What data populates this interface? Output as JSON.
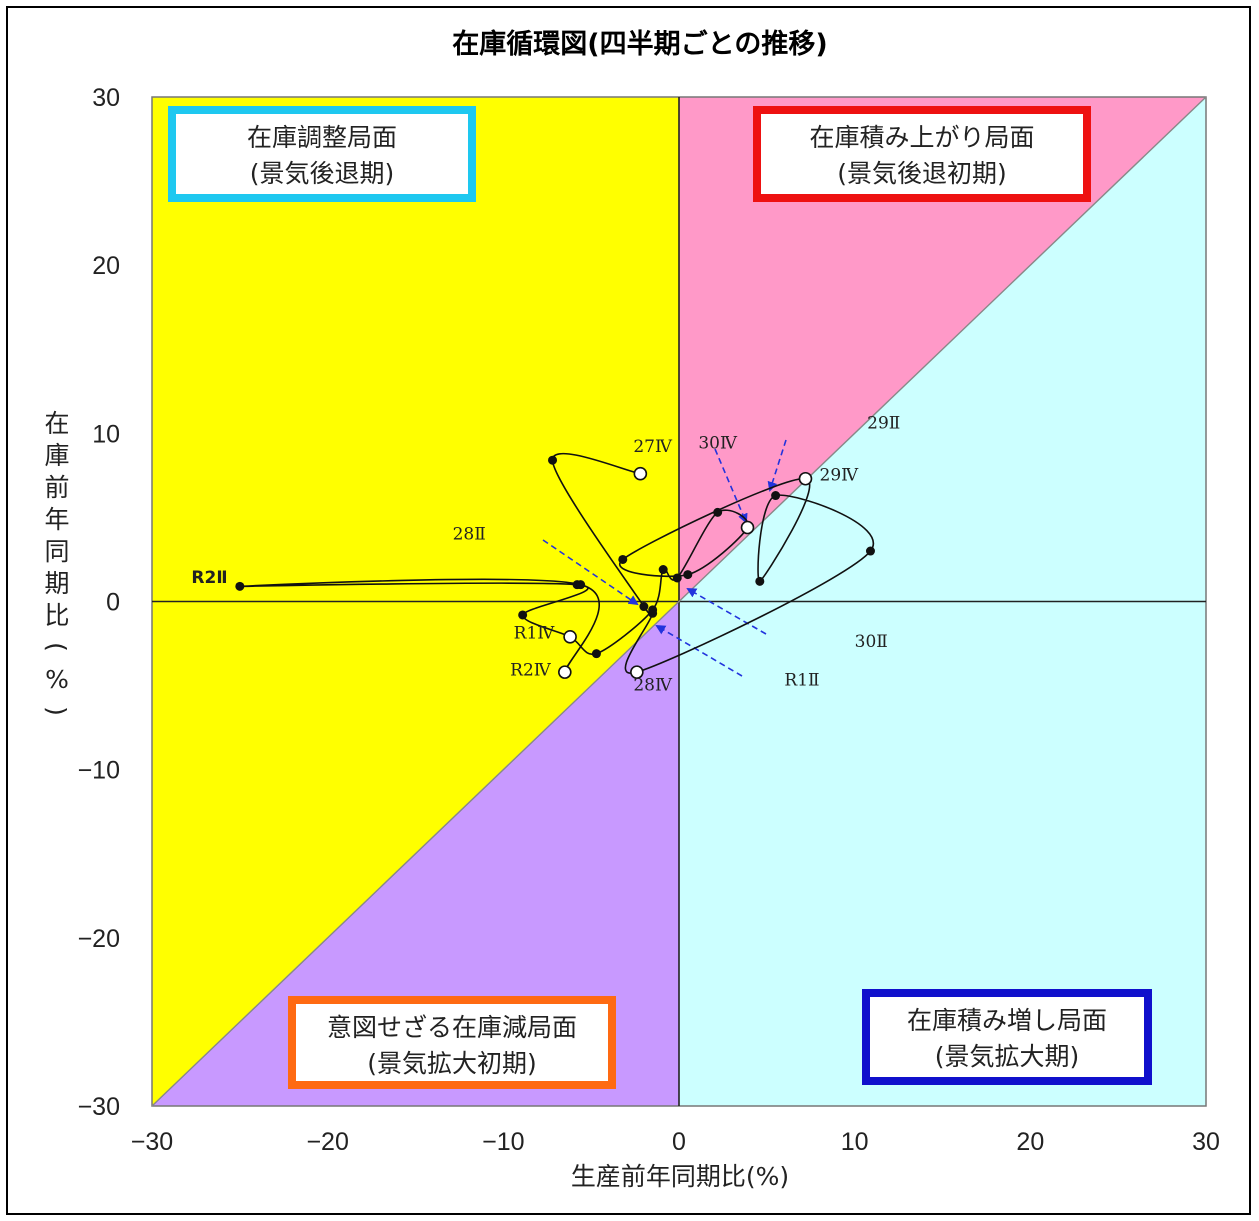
{
  "chart_data": {
    "type": "scatter",
    "title": "在庫循環図(四半期ごとの推移)",
    "xlabel": "生産前年同期比(%)",
    "ylabel": "在庫前年同期比(%)",
    "xlim": [
      -30,
      30
    ],
    "ylim": [
      -30,
      30
    ],
    "x_ticks": [
      "−30",
      "−20",
      "−10",
      "0",
      "10",
      "20",
      "30"
    ],
    "y_ticks": [
      "30",
      "20",
      "10",
      "0",
      "−10",
      "−20",
      "−30"
    ],
    "reference_lines": [
      "x = 0",
      "y = 0",
      "y = x"
    ],
    "phases": [
      {
        "name": "在庫調整局面",
        "sub": "(景気後退期)",
        "fill": "#ffff00",
        "border": "#1ec8f0"
      },
      {
        "name": "在庫積み上がり局面",
        "sub": "(景気後退初期)",
        "fill": "#ff99c8",
        "border": "#ee1111"
      },
      {
        "name": "意図せざる在庫減局面",
        "sub": "(景気拡大初期)",
        "fill": "#c899ff",
        "border": "#ff6a12"
      },
      {
        "name": "在庫積み増し局面",
        "sub": "(景気拡大期)",
        "fill": "#ccffff",
        "border": "#1010cc"
      }
    ],
    "series": [
      {
        "points": [
          {
            "x": -2.2,
            "y": 7.6,
            "label": "27Ⅳ",
            "open": true
          },
          {
            "x": -7.2,
            "y": 8.4,
            "open": false
          },
          {
            "x": -2.0,
            "y": -0.3,
            "open": false
          },
          {
            "x": -1.5,
            "y": -0.7,
            "label": "28Ⅱ",
            "open": false
          },
          {
            "x": -2.4,
            "y": -4.2,
            "label": "28Ⅳ",
            "open": true
          },
          {
            "x": 10.9,
            "y": 3.0,
            "open": false
          },
          {
            "x": 5.5,
            "y": 6.3,
            "label": "29Ⅱ",
            "open": false
          },
          {
            "x": 4.6,
            "y": 1.2,
            "open": false
          },
          {
            "x": 7.2,
            "y": 7.3,
            "label": "29Ⅳ",
            "open": true
          },
          {
            "x": -3.2,
            "y": 2.5,
            "open": false
          },
          {
            "x": 0.5,
            "y": 1.6,
            "label": "30Ⅱ",
            "open": false
          },
          {
            "x": 3.9,
            "y": 4.4,
            "label": "30Ⅳ",
            "open": true
          },
          {
            "x": 2.2,
            "y": 5.3,
            "open": false
          },
          {
            "x": -0.1,
            "y": 1.4,
            "label": "R1Ⅱ",
            "open": false
          },
          {
            "x": -0.9,
            "y": 1.9,
            "open": false
          },
          {
            "x": -1.5,
            "y": -0.5,
            "open": false
          },
          {
            "x": -4.7,
            "y": -3.1,
            "open": false
          },
          {
            "x": -6.2,
            "y": -2.1,
            "label": "R1Ⅳ",
            "open": true
          },
          {
            "x": -8.9,
            "y": -0.8,
            "open": false
          },
          {
            "x": -5.8,
            "y": 1.0,
            "open": false
          },
          {
            "x": -25.0,
            "y": 0.9,
            "label": "R2Ⅱ",
            "open": false,
            "bold_label": true
          },
          {
            "x": -5.6,
            "y": 1.0,
            "open": false
          },
          {
            "x": -6.5,
            "y": -4.2,
            "label": "R2Ⅳ",
            "open": true
          }
        ]
      }
    ]
  }
}
